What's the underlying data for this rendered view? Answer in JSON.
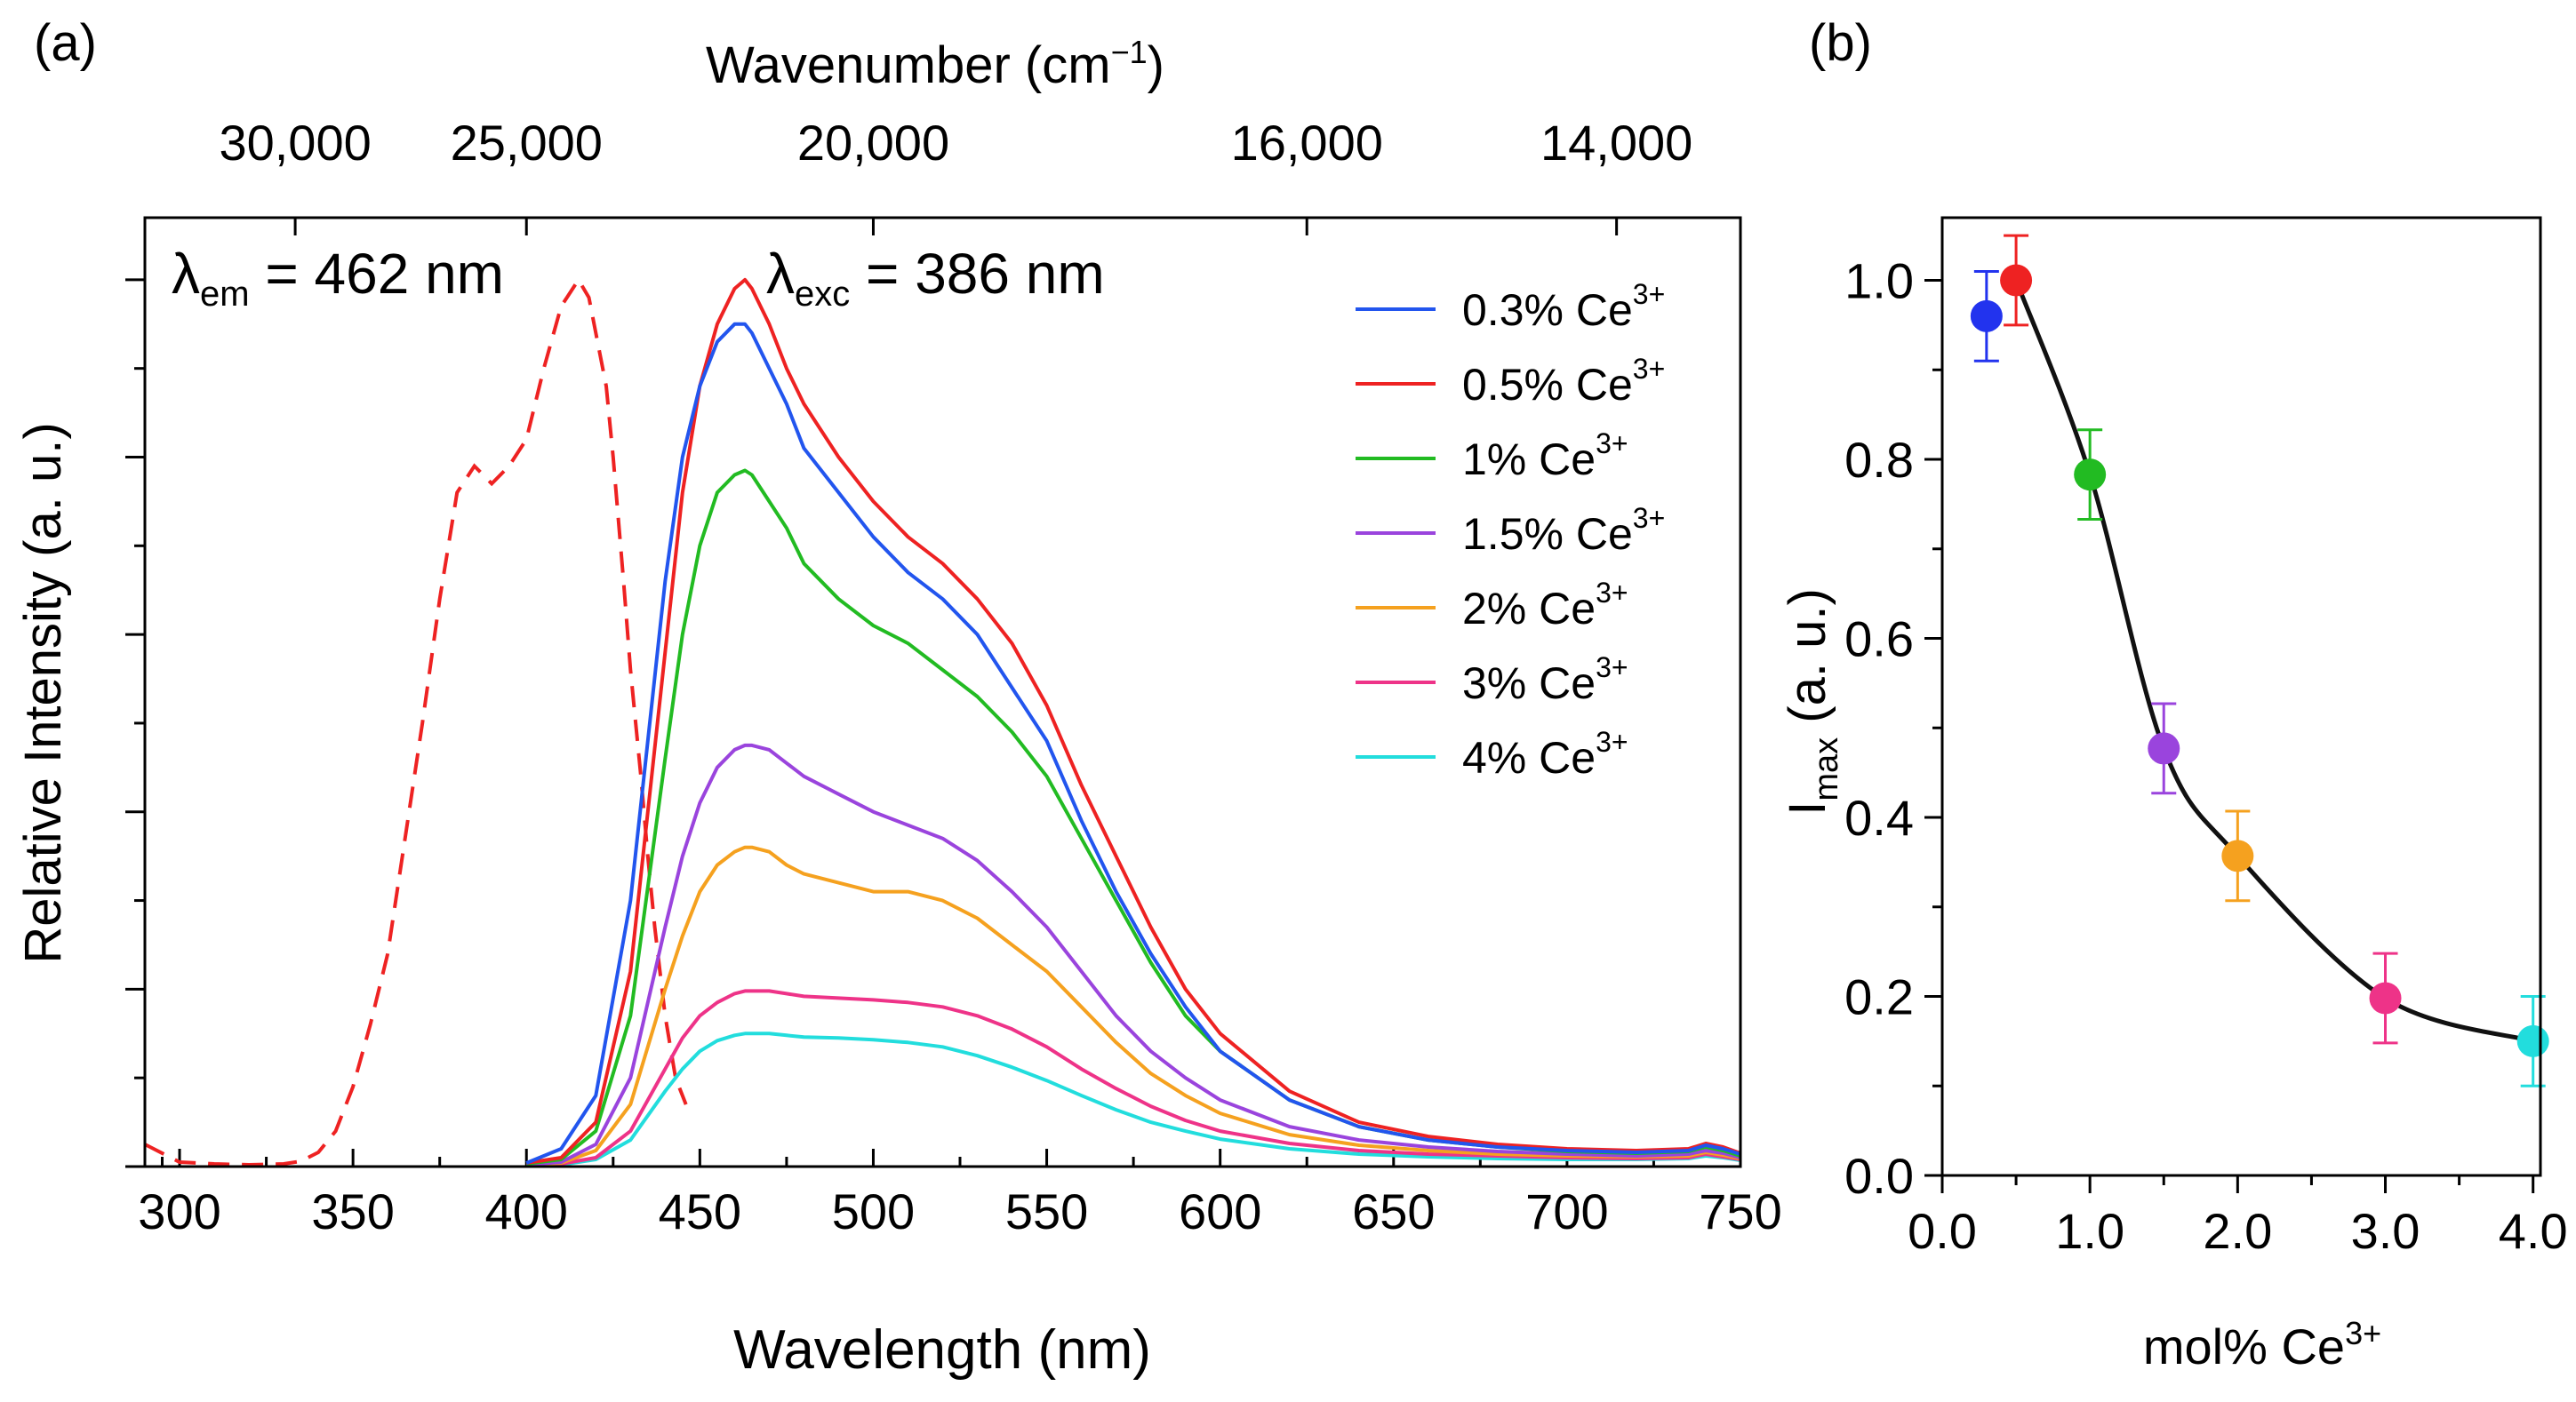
{
  "chart_data": [
    {
      "panel": "(a)",
      "type": "line",
      "xlabel": "Wavelength (nm)",
      "x2label_main": "Wavenumber (cm",
      "x2label_sup": "−1",
      "x2label_end": ")",
      "ylabel": "Relative Intensity (a. u.)",
      "xlim": [
        290,
        750
      ],
      "ylim": [
        0,
        1.07
      ],
      "xticks": [
        300,
        350,
        400,
        450,
        500,
        550,
        600,
        650,
        700,
        750
      ],
      "top_ticks": [
        {
          "label": "30,000",
          "wavenumber": 30000
        },
        {
          "label": "25,000",
          "wavenumber": 25000
        },
        {
          "label": "20,000",
          "wavenumber": 20000
        },
        {
          "label": "16,000",
          "wavenumber": 16000
        },
        {
          "label": "14,000",
          "wavenumber": 14000
        }
      ],
      "annotation_em": {
        "symbol": "λ",
        "sub": "em",
        "text": " = 462 nm",
        "color": "#ee2222"
      },
      "annotation_exc": {
        "symbol": "λ",
        "sub": "exc",
        "text": " = 386 nm"
      },
      "excitation": {
        "name": "Excitation (λem = 462 nm)",
        "color": "#ee2222",
        "style": "dashed",
        "x": [
          290,
          300,
          310,
          320,
          330,
          335,
          340,
          345,
          350,
          355,
          360,
          365,
          370,
          375,
          380,
          385,
          390,
          395,
          400,
          405,
          410,
          415,
          418,
          420,
          423,
          425,
          428,
          430,
          433,
          435,
          437,
          440,
          443,
          446
        ],
        "y": [
          0.025,
          0.005,
          0.003,
          0.002,
          0.003,
          0.006,
          0.016,
          0.04,
          0.09,
          0.16,
          0.24,
          0.37,
          0.5,
          0.64,
          0.76,
          0.79,
          0.77,
          0.79,
          0.82,
          0.9,
          0.97,
          1.0,
          0.98,
          0.94,
          0.88,
          0.8,
          0.66,
          0.56,
          0.44,
          0.35,
          0.27,
          0.17,
          0.1,
          0.07
        ]
      },
      "x": [
        400,
        410,
        420,
        430,
        440,
        445,
        450,
        455,
        460,
        463,
        465,
        470,
        475,
        480,
        490,
        500,
        510,
        520,
        530,
        540,
        550,
        560,
        570,
        580,
        590,
        600,
        620,
        640,
        660,
        680,
        700,
        720,
        735,
        740,
        745,
        750
      ],
      "series": [
        {
          "name": "0.3% Ce",
          "sup": "3+",
          "color": "#2255ee",
          "values": [
            0.004,
            0.02,
            0.08,
            0.3,
            0.66,
            0.8,
            0.88,
            0.93,
            0.95,
            0.95,
            0.94,
            0.9,
            0.86,
            0.81,
            0.76,
            0.71,
            0.67,
            0.64,
            0.6,
            0.54,
            0.48,
            0.39,
            0.31,
            0.24,
            0.18,
            0.13,
            0.075,
            0.045,
            0.03,
            0.022,
            0.018,
            0.016,
            0.018,
            0.024,
            0.02,
            0.014
          ]
        },
        {
          "name": "0.5% Ce",
          "sup": "3+",
          "color": "#ee2222",
          "values": [
            0.004,
            0.01,
            0.05,
            0.22,
            0.58,
            0.76,
            0.88,
            0.95,
            0.99,
            1.0,
            0.99,
            0.95,
            0.9,
            0.86,
            0.8,
            0.75,
            0.71,
            0.68,
            0.64,
            0.59,
            0.52,
            0.43,
            0.35,
            0.27,
            0.2,
            0.15,
            0.085,
            0.05,
            0.034,
            0.025,
            0.02,
            0.018,
            0.02,
            0.026,
            0.022,
            0.015
          ]
        },
        {
          "name": "1% Ce",
          "sup": "3+",
          "color": "#22bb22",
          "values": [
            0.003,
            0.008,
            0.04,
            0.17,
            0.46,
            0.6,
            0.7,
            0.76,
            0.78,
            0.785,
            0.78,
            0.75,
            0.72,
            0.68,
            0.64,
            0.61,
            0.59,
            0.56,
            0.53,
            0.49,
            0.44,
            0.37,
            0.3,
            0.23,
            0.17,
            0.13,
            0.075,
            0.045,
            0.03,
            0.022,
            0.017,
            0.015,
            0.017,
            0.022,
            0.018,
            0.012
          ]
        },
        {
          "name": "1.5% Ce",
          "sup": "3+",
          "color": "#9a44dd",
          "values": [
            0.002,
            0.005,
            0.025,
            0.1,
            0.27,
            0.35,
            0.41,
            0.45,
            0.47,
            0.475,
            0.475,
            0.47,
            0.455,
            0.44,
            0.42,
            0.4,
            0.385,
            0.37,
            0.345,
            0.31,
            0.27,
            0.22,
            0.17,
            0.13,
            0.1,
            0.075,
            0.045,
            0.03,
            0.022,
            0.017,
            0.014,
            0.012,
            0.014,
            0.018,
            0.015,
            0.01
          ]
        },
        {
          "name": "2% Ce",
          "sup": "3+",
          "color": "#f5a11f",
          "values": [
            0.002,
            0.004,
            0.018,
            0.07,
            0.2,
            0.26,
            0.31,
            0.34,
            0.355,
            0.36,
            0.36,
            0.355,
            0.34,
            0.33,
            0.32,
            0.31,
            0.31,
            0.3,
            0.28,
            0.25,
            0.22,
            0.18,
            0.14,
            0.105,
            0.08,
            0.06,
            0.036,
            0.024,
            0.018,
            0.014,
            0.012,
            0.011,
            0.012,
            0.016,
            0.013,
            0.009
          ]
        },
        {
          "name": "3% Ce",
          "sup": "3+",
          "color": "#ee3388",
          "values": [
            0.001,
            0.003,
            0.01,
            0.04,
            0.11,
            0.145,
            0.17,
            0.185,
            0.195,
            0.198,
            0.198,
            0.198,
            0.195,
            0.192,
            0.19,
            0.188,
            0.185,
            0.18,
            0.17,
            0.155,
            0.135,
            0.11,
            0.088,
            0.068,
            0.052,
            0.04,
            0.026,
            0.018,
            0.014,
            0.012,
            0.01,
            0.009,
            0.01,
            0.014,
            0.011,
            0.008
          ]
        },
        {
          "name": "4% Ce",
          "sup": "3+",
          "color": "#22dddd",
          "values": [
            0.001,
            0.002,
            0.008,
            0.03,
            0.085,
            0.11,
            0.13,
            0.142,
            0.148,
            0.15,
            0.15,
            0.15,
            0.148,
            0.146,
            0.145,
            0.143,
            0.14,
            0.135,
            0.125,
            0.112,
            0.097,
            0.08,
            0.064,
            0.05,
            0.04,
            0.031,
            0.02,
            0.014,
            0.011,
            0.009,
            0.008,
            0.008,
            0.009,
            0.012,
            0.01,
            0.007
          ]
        }
      ]
    },
    {
      "panel": "(b)",
      "type": "scatter",
      "xlabel_main": "mol% Ce",
      "xlabel_sup": "3+",
      "ylabel_main": "I",
      "ylabel_sub": "max",
      "ylabel_end": " (a. u.)",
      "xlim": [
        0,
        4.05
      ],
      "ylim": [
        0,
        1.07
      ],
      "xticks": [
        0,
        1,
        2,
        3,
        4
      ],
      "xtick_labels": [
        "0.0",
        "1.0",
        "2.0",
        "3.0",
        "4.0"
      ],
      "yticks": [
        0,
        0.2,
        0.4,
        0.6,
        0.8,
        1.0
      ],
      "ytick_labels": [
        "0.0",
        "0.2",
        "0.4",
        "0.6",
        "0.8",
        "1.0"
      ],
      "points": [
        {
          "x": 0.3,
          "y": 0.96,
          "err": 0.05,
          "color": "#2233ee"
        },
        {
          "x": 0.5,
          "y": 1.0,
          "err": 0.05,
          "color": "#ee2222"
        },
        {
          "x": 1.0,
          "y": 0.783,
          "err": 0.05,
          "color": "#22bb22"
        },
        {
          "x": 1.5,
          "y": 0.477,
          "err": 0.05,
          "color": "#9a44dd"
        },
        {
          "x": 2.0,
          "y": 0.357,
          "err": 0.05,
          "color": "#f5a11f"
        },
        {
          "x": 3.0,
          "y": 0.198,
          "err": 0.05,
          "color": "#ee3388"
        },
        {
          "x": 4.0,
          "y": 0.15,
          "err": 0.05,
          "color": "#22dddd"
        }
      ],
      "fit_line_from_x": 0.5
    }
  ]
}
